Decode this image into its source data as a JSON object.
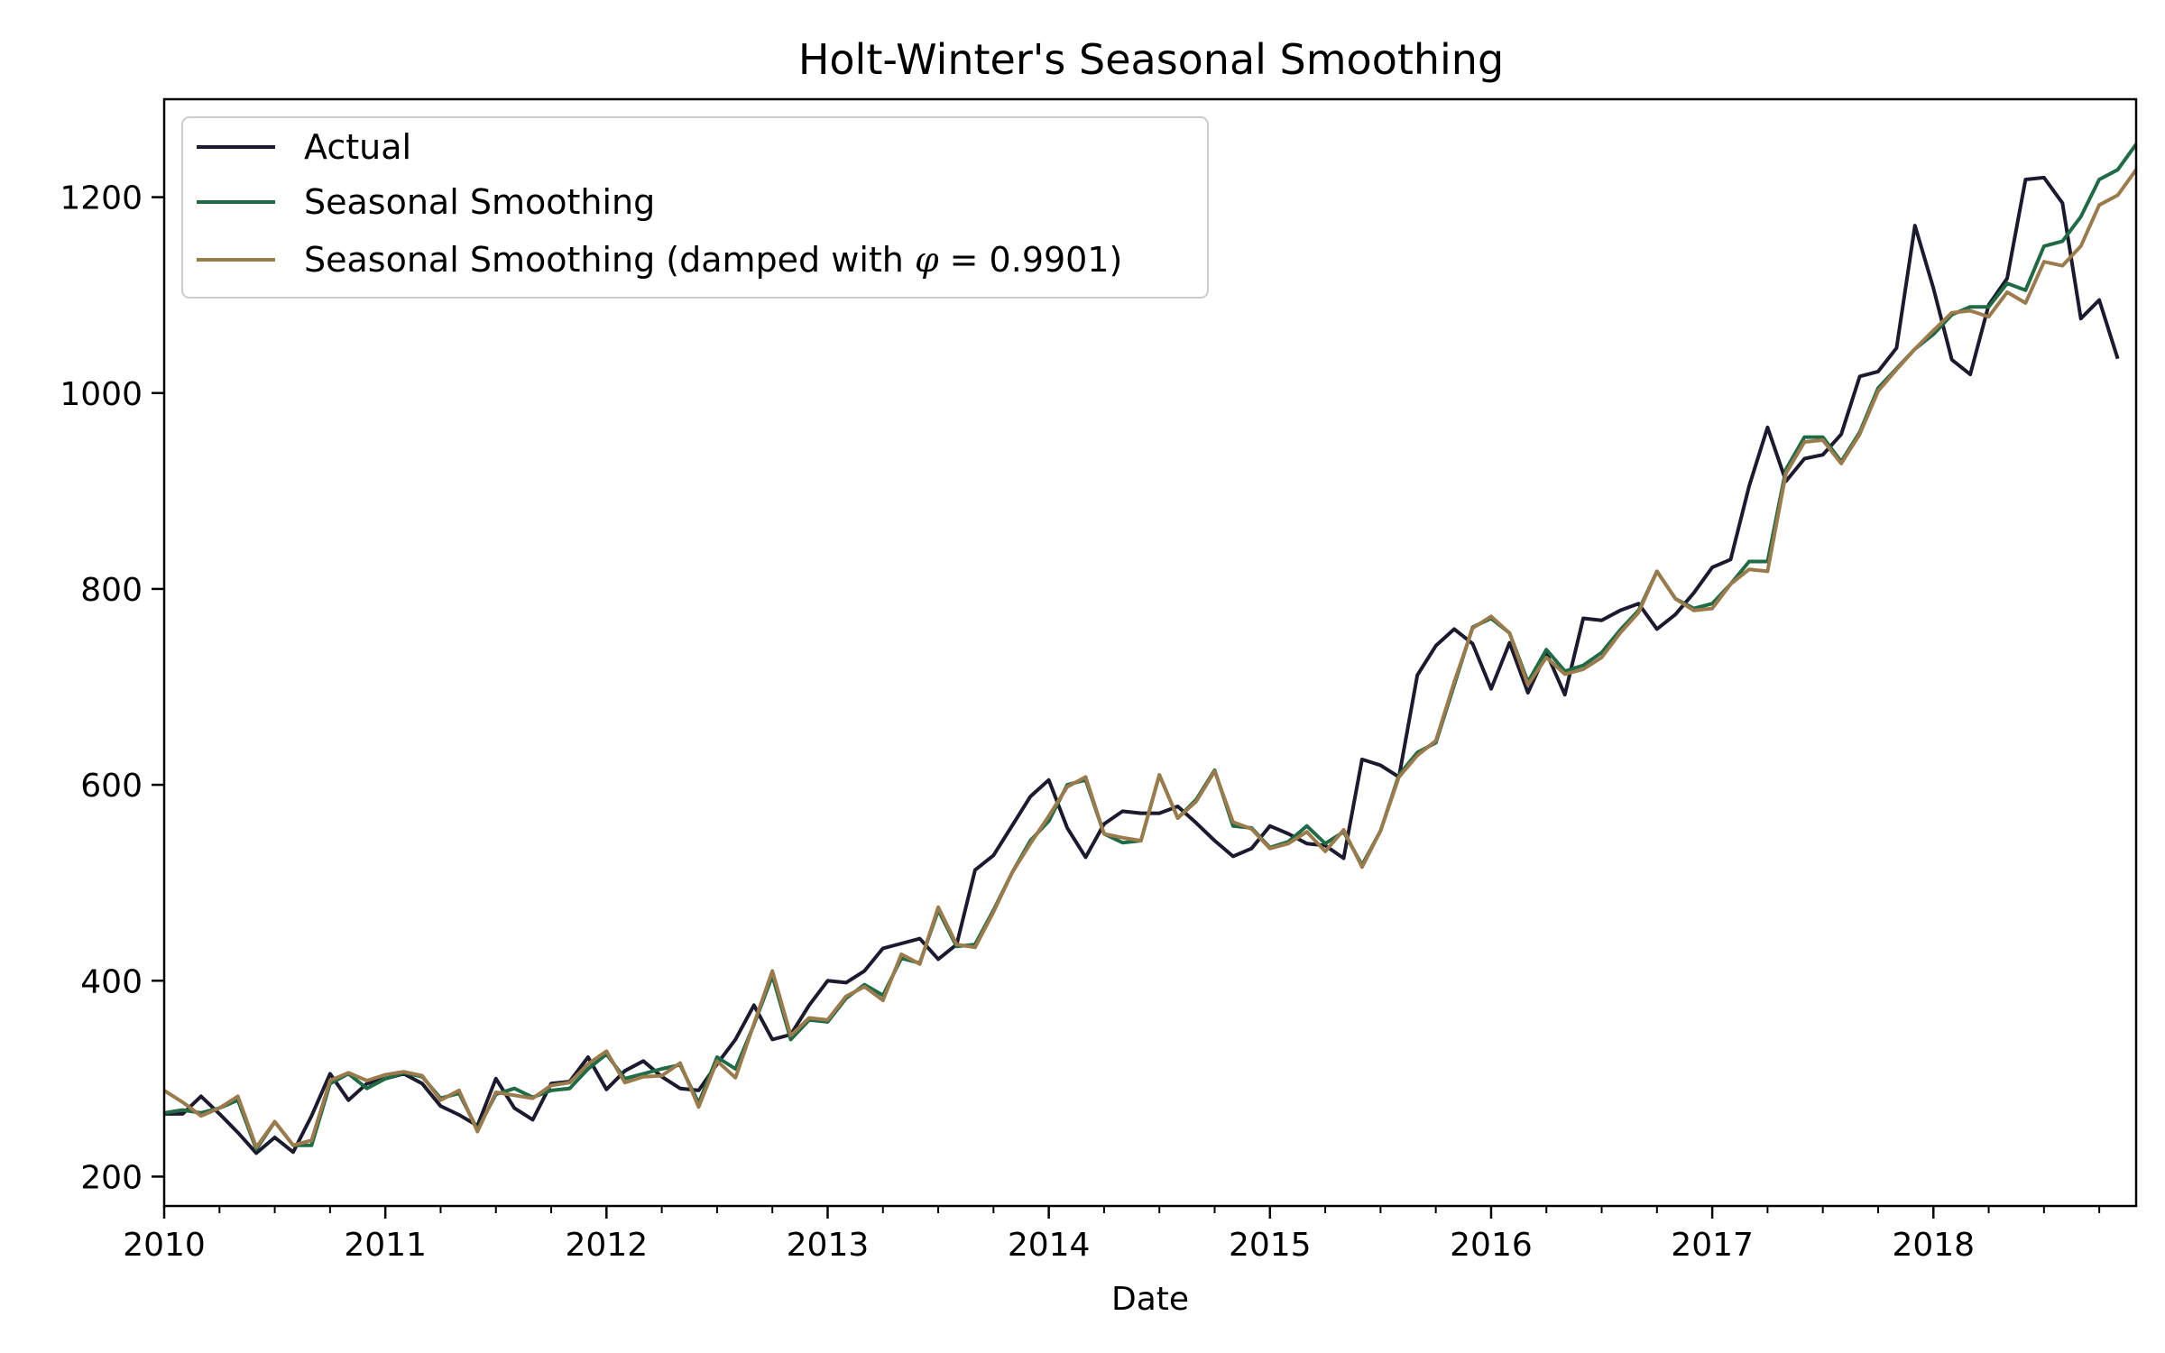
{
  "chart_data": {
    "type": "line",
    "title": "Holt-Winter's Seasonal Smoothing",
    "xlabel": "Date",
    "ylabel": "",
    "xlim": [
      "2010-01",
      "2018-12"
    ],
    "ylim": [
      170,
      1300
    ],
    "x_ticks": [
      "2010",
      "2011",
      "2012",
      "2013",
      "2014",
      "2015",
      "2016",
      "2017",
      "2018"
    ],
    "y_ticks": [
      200,
      400,
      600,
      800,
      1000,
      1200
    ],
    "grid": false,
    "legend_position": "top-left",
    "x_start": "2010-01",
    "x_frequency": "monthly",
    "series": [
      {
        "name": "Actual",
        "color": "#1b1a2e",
        "start": "2010-01",
        "values": [
          264,
          264,
          282,
          264,
          245,
          224,
          240,
          225,
          262,
          305,
          278,
          295,
          300,
          305,
          295,
          272,
          263,
          252,
          300,
          270,
          258,
          295,
          297,
          322,
          289,
          308,
          318,
          302,
          290,
          288,
          315,
          340,
          375,
          340,
          345,
          375,
          400,
          398,
          410,
          433,
          438,
          443,
          422,
          437,
          513,
          528,
          558,
          588,
          605,
          556,
          526,
          560,
          573,
          571,
          571,
          578,
          561,
          543,
          527,
          535,
          558,
          550,
          540,
          538,
          525,
          626,
          620,
          608,
          712,
          742,
          759,
          744,
          698,
          745,
          694,
          735,
          692,
          770,
          768,
          778,
          785,
          759,
          774,
          796,
          822,
          830,
          905,
          965,
          910,
          933,
          937,
          958,
          1017,
          1022,
          1046,
          1171,
          1107,
          1034,
          1019,
          1090,
          1117,
          1218,
          1220,
          1194,
          1076,
          1095,
          1035
        ]
      },
      {
        "name": "Seasonal Smoothing",
        "color": "#1e6b45",
        "start": "2010-01",
        "values": [
          265,
          268,
          265,
          270,
          278,
          228,
          256,
          232,
          232,
          295,
          305,
          290,
          300,
          306,
          302,
          280,
          285,
          248,
          284,
          290,
          281,
          288,
          290,
          310,
          325,
          300,
          305,
          310,
          314,
          275,
          322,
          310,
          355,
          405,
          340,
          360,
          358,
          382,
          396,
          385,
          423,
          418,
          472,
          435,
          437,
          472,
          510,
          543,
          563,
          600,
          605,
          550,
          541,
          543,
          610,
          566,
          585,
          615,
          558,
          556,
          536,
          542,
          558,
          540,
          552,
          518,
          553,
          610,
          633,
          643,
          702,
          761,
          770,
          755,
          705,
          738,
          716,
          722,
          735,
          758,
          778,
          818,
          790,
          780,
          785,
          805,
          828,
          828,
          922,
          955,
          955,
          930,
          960,
          1005,
          1025,
          1045,
          1060,
          1080,
          1088,
          1088,
          1112,
          1105,
          1150,
          1155,
          1180,
          1218,
          1228,
          1254
        ]
      },
      {
        "name": "Seasonal Smoothing (damped with φ = 0.9901)",
        "color": "#9b7b4b",
        "start": "2010-01",
        "values": [
          288,
          276,
          262,
          270,
          282,
          230,
          256,
          232,
          237,
          298,
          306,
          298,
          304,
          307,
          303,
          278,
          288,
          246,
          286,
          283,
          280,
          293,
          296,
          315,
          328,
          296,
          302,
          303,
          316,
          271,
          318,
          301,
          356,
          410,
          344,
          362,
          360,
          384,
          394,
          380,
          427,
          417,
          475,
          437,
          434,
          470,
          510,
          540,
          568,
          598,
          608,
          550,
          546,
          543,
          610,
          566,
          583,
          614,
          562,
          555,
          535,
          540,
          552,
          532,
          554,
          516,
          553,
          608,
          630,
          645,
          705,
          760,
          772,
          755,
          702,
          730,
          713,
          718,
          730,
          755,
          776,
          818,
          790,
          778,
          780,
          805,
          820,
          818,
          918,
          950,
          952,
          928,
          958,
          1002,
          1024,
          1045,
          1064,
          1082,
          1084,
          1078,
          1103,
          1092,
          1134,
          1130,
          1150,
          1192,
          1202,
          1228
        ]
      }
    ]
  }
}
